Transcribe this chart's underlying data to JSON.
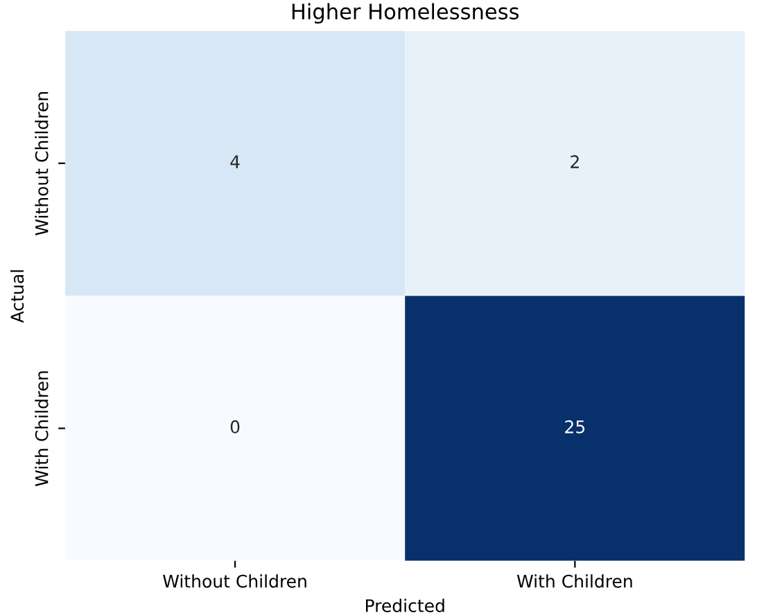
{
  "chart_data": {
    "type": "heatmap",
    "title": "Higher Homelessness",
    "xlabel": "Predicted",
    "ylabel": "Actual",
    "categories": [
      "Without Children",
      "With Children"
    ],
    "y_categories": [
      "Without Children",
      "With Children"
    ],
    "cells": [
      [
        4,
        2
      ],
      [
        0,
        25
      ]
    ],
    "data_labels": true
  }
}
